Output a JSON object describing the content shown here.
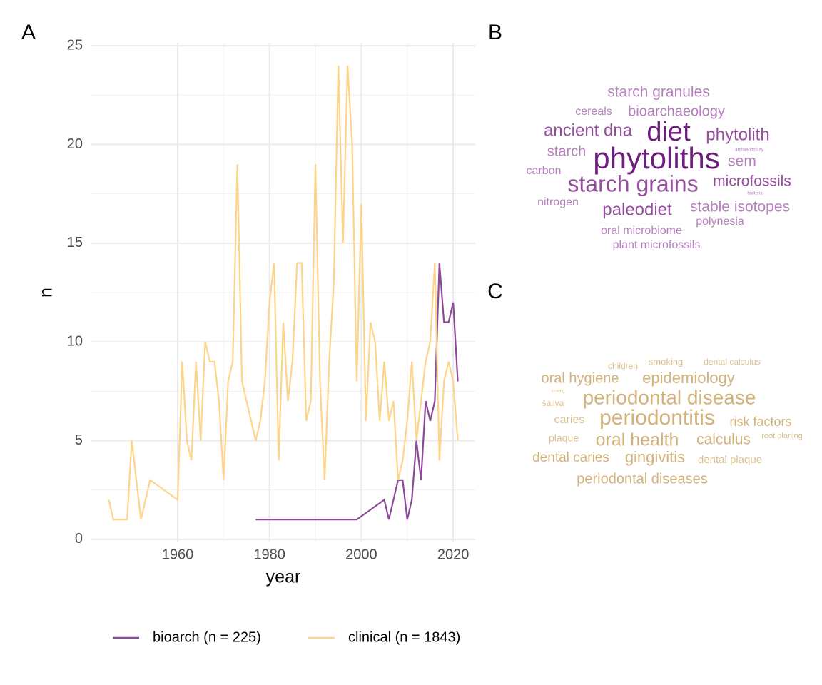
{
  "chart_data": [
    {
      "type": "line",
      "panel": "A",
      "x_label": "year",
      "y_label": "n",
      "xlim": [
        1941.2,
        2024.8
      ],
      "xticks": [
        1960,
        1980,
        2000,
        2020
      ],
      "ylim": [
        -0.15,
        25.15
      ],
      "yticks": [
        0,
        5,
        10,
        15,
        20,
        25
      ],
      "grid": true,
      "legend": "bottom",
      "series": [
        {
          "name": "bioarch (n = 225)",
          "color": "#8e4a9a",
          "x": [
            1977,
            1999,
            2005,
            2006,
            2007,
            2008,
            2009,
            2010,
            2011,
            2012,
            2013,
            2014,
            2015,
            2016,
            2017,
            2018,
            2019,
            2020,
            2021
          ],
          "values": [
            1,
            1,
            2,
            1,
            2,
            3,
            3,
            1,
            2,
            5,
            3,
            7,
            6,
            7,
            14,
            11,
            11,
            12,
            8
          ]
        },
        {
          "name": "clinical (n = 1843)",
          "color": "#fdd58a",
          "x": [
            1945,
            1946,
            1949,
            1950,
            1951,
            1952,
            1954,
            1960,
            1961,
            1962,
            1963,
            1964,
            1965,
            1966,
            1967,
            1968,
            1969,
            1970,
            1971,
            1972,
            1973,
            1974,
            1977,
            1978,
            1979,
            1980,
            1981,
            1982,
            1983,
            1984,
            1985,
            1986,
            1987,
            1988,
            1989,
            1990,
            1991,
            1992,
            1993,
            1994,
            1995,
            1996,
            1997,
            1998,
            1999,
            2000,
            2001,
            2002,
            2003,
            2004,
            2005,
            2006,
            2007,
            2008,
            2009,
            2010,
            2011,
            2012,
            2013,
            2014,
            2015,
            2016,
            2017,
            2018,
            2019,
            2020,
            2021
          ],
          "values": [
            2,
            1,
            1,
            5,
            3,
            1,
            3,
            2,
            9,
            5,
            4,
            9,
            5,
            10,
            9,
            9,
            7,
            3,
            8,
            9,
            19,
            8,
            5,
            6,
            8,
            12,
            14,
            4,
            11,
            7,
            9,
            14,
            14,
            6,
            7,
            19,
            8,
            3,
            9,
            13,
            24,
            15,
            24,
            20,
            8,
            17,
            6,
            11,
            10,
            6,
            9,
            6,
            7,
            3,
            4,
            6,
            9,
            5,
            7,
            9,
            10,
            14,
            4,
            8,
            9,
            8,
            5
          ]
        }
      ]
    },
    {
      "type": "wordcloud",
      "panel": "B",
      "words": [
        "starch granules",
        "cereals",
        "bioarchaeology",
        "ancient dna",
        "diet",
        "phytolith",
        "starch",
        "archaeobotany",
        "phytoliths",
        "sem",
        "carbon",
        "starch grains",
        "microfossils",
        "bacteria",
        "nitrogen",
        "paleodiet",
        "stable isotopes",
        "polynesia",
        "oral microbiome",
        "plant microfossils"
      ]
    },
    {
      "type": "wordcloud",
      "panel": "C",
      "words": [
        "children",
        "smoking",
        "dental calculus",
        "oral hygiene",
        "epidemiology",
        "scaling",
        "periodontal disease",
        "saliva",
        "caries",
        "periodontitis",
        "risk factors",
        "plaque",
        "oral health",
        "calculus",
        "root planing",
        "dental caries",
        "gingivitis",
        "dental plaque",
        "periodontal diseases"
      ]
    }
  ]
}
